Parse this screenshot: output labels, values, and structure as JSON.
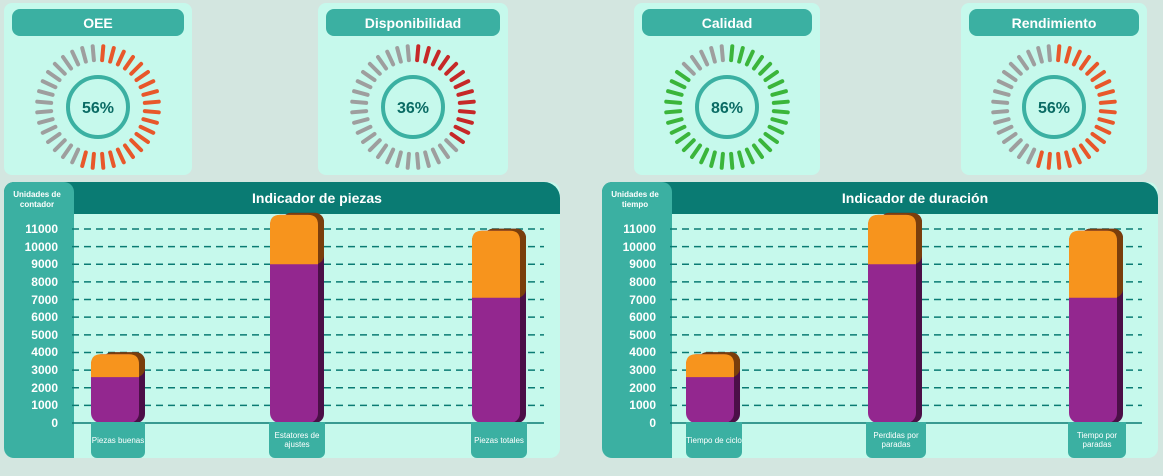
{
  "gauges": [
    {
      "title": "OEE",
      "value": "56%",
      "pct": 56,
      "on_color": "#e8572a",
      "off_color": "#9e9e9e"
    },
    {
      "title": "Disponibilidad",
      "value": "36%",
      "pct": 36,
      "on_color": "#c62828",
      "off_color": "#9e9e9e"
    },
    {
      "title": "Calidad",
      "value": "86%",
      "pct": 86,
      "on_color": "#3bb53b",
      "off_color": "#9e9e9e"
    },
    {
      "title": "Rendimiento",
      "value": "56%",
      "pct": 56,
      "on_color": "#e8572a",
      "off_color": "#9e9e9e"
    }
  ],
  "colors": {
    "ring": "#3bb0a2",
    "ring_text": "#0a6b64",
    "bar_top": "#f7941d",
    "bar_top_dark": "#7a3e0c",
    "bar_bottom": "#93278f",
    "bar_bottom_dark": "#4b0f47",
    "grid": "#0a7b73"
  },
  "chart_data": [
    {
      "type": "bar",
      "title": "Indicador de piezas",
      "ylabel": "Unidades de contador",
      "yticks": [
        "11000",
        "10000",
        "9000",
        "8000",
        "7000",
        "6000",
        "5000",
        "4000",
        "3000",
        "2000",
        "1000",
        "0"
      ],
      "ylim": [
        0,
        11000
      ],
      "categories": [
        "Piezas buenas",
        "Estatores de ajustes",
        "Piezas totales"
      ],
      "series": [
        {
          "values": [
            2600,
            9000,
            7100
          ]
        },
        {
          "values": [
            1300,
            2800,
            3800
          ]
        }
      ]
    },
    {
      "type": "bar",
      "title": "Indicador de duración",
      "ylabel": "Unidades de tiempo",
      "yticks": [
        "11000",
        "10000",
        "9000",
        "8000",
        "7000",
        "6000",
        "5000",
        "4000",
        "3000",
        "2000",
        "1000",
        "0"
      ],
      "ylim": [
        0,
        11000
      ],
      "categories": [
        "Tiempo de ciclo",
        "Perdidas por paradas",
        "Tiempo por paradas"
      ],
      "series": [
        {
          "values": [
            2600,
            9000,
            7100
          ]
        },
        {
          "values": [
            1300,
            2800,
            3800
          ]
        }
      ]
    }
  ]
}
